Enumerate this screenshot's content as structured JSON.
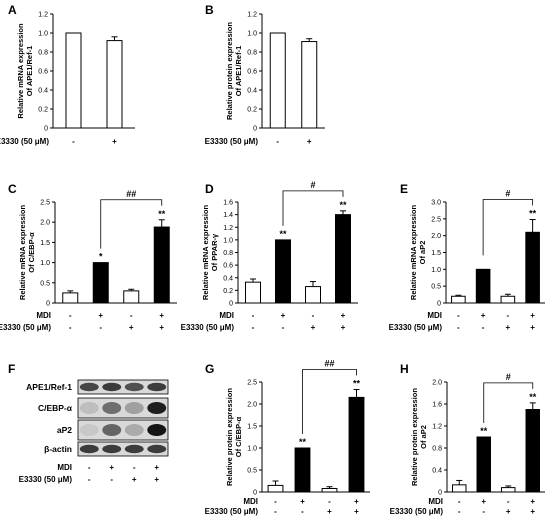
{
  "chart_data": [
    {
      "panel": "A",
      "type": "bar",
      "ylabel": [
        "Relative mRNA expression",
        "Of APE1/Ref-1"
      ],
      "ylim": [
        0,
        1.2
      ],
      "yticks": [
        "0",
        "0.2",
        "0.4",
        "0.6",
        "0.8",
        "1.0",
        "1.2"
      ],
      "rows": [
        {
          "label": "E3330  (50 μM)",
          "signs": [
            "-",
            "+"
          ]
        }
      ],
      "bars": [
        {
          "value": 1.0,
          "error": 0,
          "fill": "#ffffff",
          "star": ""
        },
        {
          "value": 0.92,
          "error": 0.04,
          "fill": "#ffffff",
          "star": ""
        }
      ],
      "brackets": []
    },
    {
      "panel": "B",
      "type": "bar",
      "ylabel": [
        "Relative protein expression",
        "Of APE1/Ref-1"
      ],
      "ylim": [
        0,
        1.2
      ],
      "yticks": [
        "0",
        "0.2",
        "0.4",
        "0.6",
        "0.8",
        "1.0",
        "1.2"
      ],
      "rows": [
        {
          "label": "E3330  (50 μM)",
          "signs": [
            "-",
            "+"
          ]
        }
      ],
      "bars": [
        {
          "value": 1.0,
          "error": 0,
          "fill": "#ffffff",
          "star": ""
        },
        {
          "value": 0.91,
          "error": 0.03,
          "fill": "#ffffff",
          "star": ""
        }
      ],
      "brackets": []
    },
    {
      "panel": "C",
      "type": "bar",
      "ylabel": [
        "Relative mRNA expression",
        "Of C/EBP-α"
      ],
      "ylim": [
        0,
        2.5
      ],
      "yticks": [
        "0",
        "0.5",
        "1.0",
        "1.5",
        "2.0",
        "2.5"
      ],
      "rows": [
        {
          "label": "MDI",
          "signs": [
            "-",
            "+",
            "-",
            "+"
          ]
        },
        {
          "label": "E3330  (50 μM)",
          "signs": [
            "-",
            "-",
            "+",
            "+"
          ]
        }
      ],
      "bars": [
        {
          "value": 0.25,
          "error": 0.05,
          "fill": "#ffffff",
          "star": ""
        },
        {
          "value": 1.0,
          "error": 0,
          "fill": "#000000",
          "star": "*"
        },
        {
          "value": 0.3,
          "error": 0.04,
          "fill": "#ffffff",
          "star": ""
        },
        {
          "value": 1.88,
          "error": 0.18,
          "fill": "#000000",
          "star": "**"
        }
      ],
      "brackets": [
        {
          "from": 1,
          "to": 3,
          "label": "##"
        }
      ]
    },
    {
      "panel": "D",
      "type": "bar",
      "ylabel": [
        "Relative mRNA expression",
        "Of PPAR-γ"
      ],
      "ylim": [
        0,
        1.6
      ],
      "yticks": [
        "0",
        "0.2",
        "0.4",
        "0.6",
        "0.8",
        "1.0",
        "1.2",
        "1.4",
        "1.6"
      ],
      "rows": [
        {
          "label": "MDI",
          "signs": [
            "-",
            "+",
            "-",
            "+"
          ]
        },
        {
          "label": "E3330  (50 μM)",
          "signs": [
            "-",
            "-",
            "+",
            "+"
          ]
        }
      ],
      "bars": [
        {
          "value": 0.33,
          "error": 0.05,
          "fill": "#ffffff",
          "star": ""
        },
        {
          "value": 1.0,
          "error": 0,
          "fill": "#000000",
          "star": "**"
        },
        {
          "value": 0.26,
          "error": 0.08,
          "fill": "#ffffff",
          "star": ""
        },
        {
          "value": 1.4,
          "error": 0.06,
          "fill": "#000000",
          "star": "**"
        }
      ],
      "brackets": [
        {
          "from": 1,
          "to": 3,
          "label": "#"
        }
      ]
    },
    {
      "panel": "E",
      "type": "bar",
      "ylabel": [
        "Relative mRNA expression",
        "Of aP2"
      ],
      "ylim": [
        0,
        3.0
      ],
      "yticks": [
        "0",
        "0.5",
        "1.0",
        "1.5",
        "2.0",
        "2.5",
        "3.0"
      ],
      "rows": [
        {
          "label": "MDI",
          "signs": [
            "-",
            "+",
            "-",
            "+"
          ]
        },
        {
          "label": "E3330  (50 μM)",
          "signs": [
            "-",
            "-",
            "+",
            "+"
          ]
        }
      ],
      "bars": [
        {
          "value": 0.2,
          "error": 0.03,
          "fill": "#ffffff",
          "star": ""
        },
        {
          "value": 1.0,
          "error": 0,
          "fill": "#000000",
          "star": ""
        },
        {
          "value": 0.2,
          "error": 0.06,
          "fill": "#ffffff",
          "star": ""
        },
        {
          "value": 2.1,
          "error": 0.38,
          "fill": "#000000",
          "star": "**"
        }
      ],
      "brackets": [
        {
          "from": 1,
          "to": 3,
          "label": "#"
        }
      ]
    },
    {
      "panel": "G",
      "type": "bar",
      "ylabel": [
        "Relative protein expression",
        "Of C/EBP-α"
      ],
      "ylim": [
        0,
        2.5
      ],
      "yticks": [
        "0",
        "0.5",
        "1.0",
        "1.5",
        "2.0",
        "2.5"
      ],
      "rows": [
        {
          "label": "MDI",
          "signs": [
            "-",
            "+",
            "-",
            "+"
          ]
        },
        {
          "label": "E3330  (50 μM)",
          "signs": [
            "-",
            "-",
            "+",
            "+"
          ]
        }
      ],
      "bars": [
        {
          "value": 0.15,
          "error": 0.1,
          "fill": "#ffffff",
          "star": ""
        },
        {
          "value": 1.0,
          "error": 0,
          "fill": "#000000",
          "star": "**"
        },
        {
          "value": 0.08,
          "error": 0.04,
          "fill": "#ffffff",
          "star": ""
        },
        {
          "value": 2.15,
          "error": 0.18,
          "fill": "#000000",
          "star": "**"
        }
      ],
      "brackets": [
        {
          "from": 1,
          "to": 3,
          "label": "##"
        }
      ]
    },
    {
      "panel": "H",
      "type": "bar",
      "ylabel": [
        "Relative protein expression",
        "Of aP2"
      ],
      "ylim": [
        0,
        2.0
      ],
      "yticks": [
        "0",
        "0.4",
        "0.8",
        "1.2",
        "1.6",
        "2.0"
      ],
      "rows": [
        {
          "label": "MDI",
          "signs": [
            "-",
            "+",
            "-",
            "+"
          ]
        },
        {
          "label": "E3330  (50 μM)",
          "signs": [
            "-",
            "-",
            "+",
            "+"
          ]
        }
      ],
      "bars": [
        {
          "value": 0.13,
          "error": 0.08,
          "fill": "#ffffff",
          "star": ""
        },
        {
          "value": 1.0,
          "error": 0,
          "fill": "#000000",
          "star": "**"
        },
        {
          "value": 0.08,
          "error": 0.03,
          "fill": "#ffffff",
          "star": ""
        },
        {
          "value": 1.5,
          "error": 0.12,
          "fill": "#000000",
          "star": "**"
        }
      ],
      "brackets": [
        {
          "from": 1,
          "to": 3,
          "label": "#"
        }
      ]
    }
  ],
  "western_blot": {
    "panel": "F",
    "bands": [
      "APE1/Ref-1",
      "C/EBP-α",
      "aP2",
      "β-actin"
    ],
    "rows": [
      {
        "label": "MDI",
        "signs": [
          "-",
          "+",
          "-",
          "+"
        ]
      },
      {
        "label": "E3330  (50 μM)",
        "signs": [
          "-",
          "-",
          "+",
          "+"
        ]
      }
    ],
    "intensity": [
      [
        0.75,
        0.8,
        0.7,
        0.8
      ],
      [
        0.15,
        0.55,
        0.3,
        0.95
      ],
      [
        0.1,
        0.6,
        0.25,
        1.0
      ],
      [
        0.8,
        0.8,
        0.8,
        0.8
      ]
    ]
  }
}
